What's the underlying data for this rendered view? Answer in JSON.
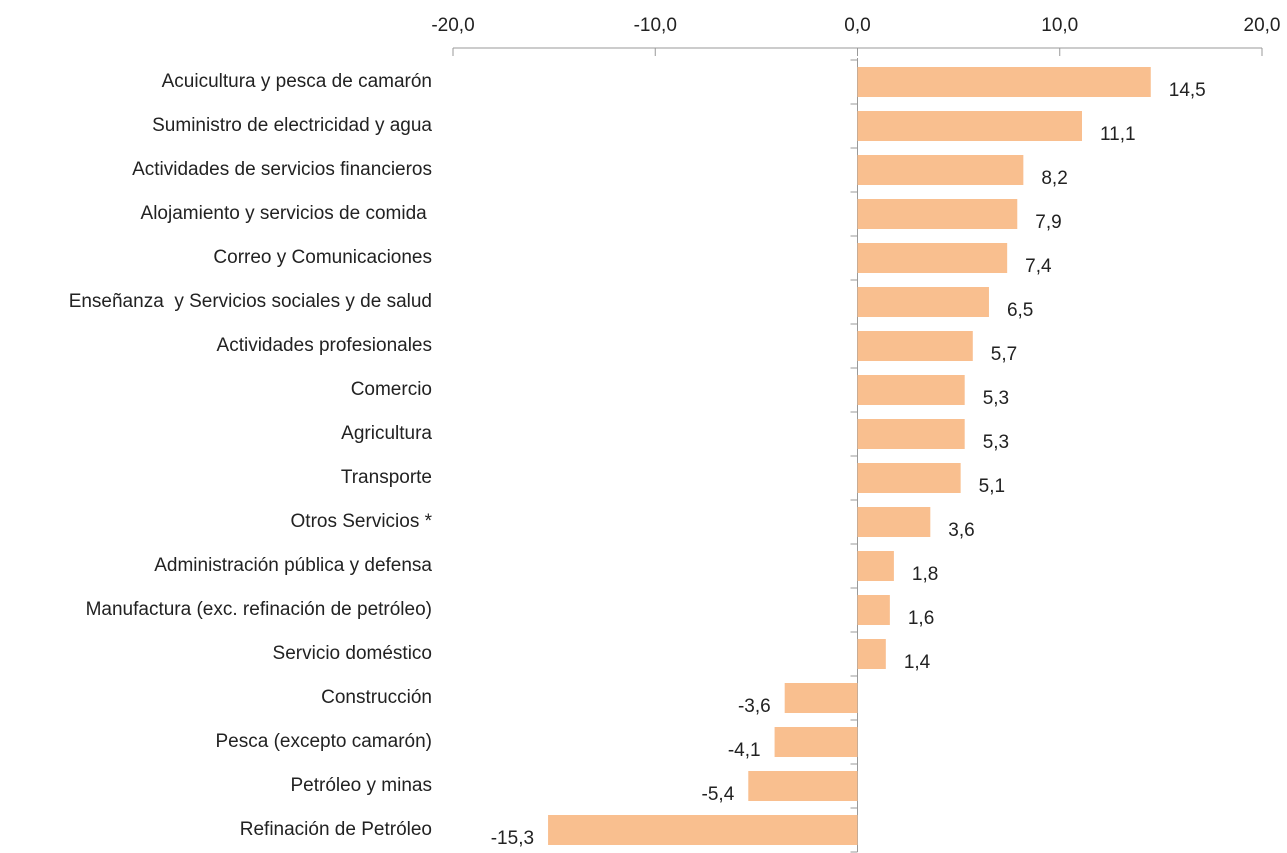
{
  "chart_data": {
    "type": "bar",
    "orientation": "horizontal",
    "color": "#f9bf8f",
    "categories": [
      "Acuicultura y pesca de camarón",
      "Suministro de electricidad y agua",
      "Actividades de servicios financieros",
      "Alojamiento y servicios de comida ",
      "Correo y Comunicaciones",
      "Enseñanza  y Servicios sociales y de salud",
      "Actividades profesionales",
      "Comercio",
      "Agricultura",
      "Transporte",
      "Otros Servicios *",
      "Administración pública y defensa",
      "Manufactura (exc. refinación de petróleo)",
      "Servicio doméstico",
      "Construcción",
      "Pesca (excepto camarón)",
      "Petróleo y minas",
      "Refinación de Petróleo"
    ],
    "values": [
      14.5,
      11.1,
      8.2,
      7.9,
      7.4,
      6.5,
      5.7,
      5.3,
      5.3,
      5.1,
      3.6,
      1.8,
      1.6,
      1.4,
      -3.6,
      -4.1,
      -5.4,
      -15.3
    ],
    "value_labels": [
      "14,5",
      "11,1",
      "8,2",
      "7,9",
      "7,4",
      "6,5",
      "5,7",
      "5,3",
      "5,3",
      "5,1",
      "3,6",
      "1,8",
      "1,6",
      "1,4",
      "-3,6",
      "-4,1",
      "-5,4",
      "-15,3"
    ],
    "xlim": [
      -20,
      20
    ],
    "xticks": [
      {
        "value": -20,
        "label": "-20,0"
      },
      {
        "value": -10,
        "label": "-10,0"
      },
      {
        "value": 0,
        "label": "0,0"
      },
      {
        "value": 10,
        "label": "10,0"
      },
      {
        "value": 20,
        "label": "20,0"
      }
    ]
  }
}
